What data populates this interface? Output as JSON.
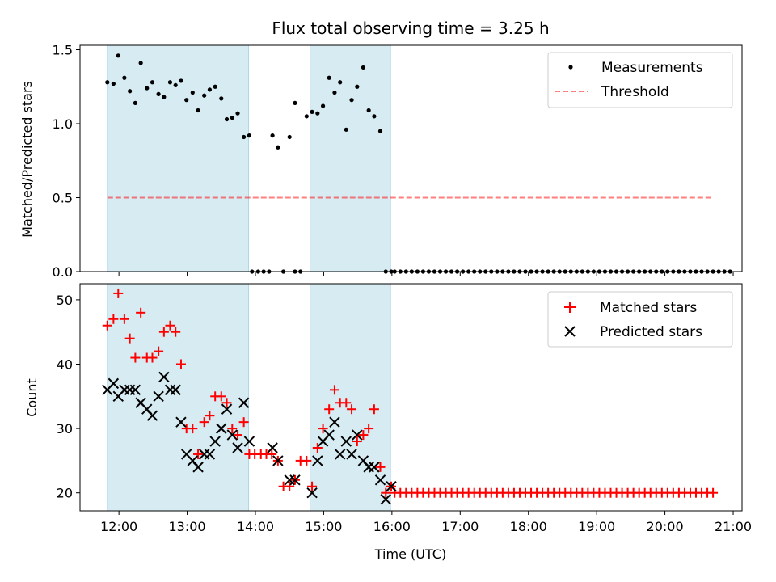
{
  "chart_data": [
    {
      "type": "scatter",
      "title": "Flux total observing time = 3.25 h",
      "xlabel": "",
      "ylabel": "Matched/Predicted stars",
      "xlim": [
        11.43,
        21.13
      ],
      "ylim": [
        0.0,
        1.53
      ],
      "yticks": [
        0.0,
        0.5,
        1.0,
        1.5
      ],
      "ytick_labels": [
        "0.0",
        "0.5",
        "1.0",
        "1.5"
      ],
      "xticks": [
        12,
        13,
        14,
        15,
        16,
        17,
        18,
        19,
        20,
        21
      ],
      "shaded_spans": [
        [
          11.83,
          13.9
        ],
        [
          14.8,
          15.98
        ]
      ],
      "series": [
        {
          "name": "Measurements",
          "x": [
            11.83,
            11.92,
            11.99,
            12.08,
            12.16,
            12.24,
            12.32,
            12.41,
            12.49,
            12.58,
            12.66,
            12.75,
            12.83,
            12.91,
            12.99,
            13.08,
            13.16,
            13.25,
            13.33,
            13.41,
            13.5,
            13.58,
            13.66,
            13.74,
            13.83,
            13.91,
            14.25,
            14.33,
            14.41,
            14.5,
            14.58,
            14.66,
            14.75,
            14.83,
            14.91,
            14.99,
            15.08,
            15.16,
            15.24,
            15.33,
            15.41,
            15.49,
            15.58,
            15.66,
            15.74,
            15.83,
            15.91,
            15.99
          ],
          "values": [
            1.28,
            1.27,
            1.46,
            1.31,
            1.22,
            1.14,
            1.41,
            1.24,
            1.28,
            1.2,
            1.18,
            1.28,
            1.26,
            1.29,
            1.16,
            1.21,
            1.09,
            1.19,
            1.23,
            1.25,
            1.17,
            1.03,
            1.04,
            1.07,
            0.91,
            0.92,
            0.92,
            0.84,
            0.0,
            0.91,
            1.14,
            0.0,
            1.05,
            1.08,
            1.07,
            1.12,
            1.31,
            1.21,
            1.28,
            0.96,
            1.16,
            1.25,
            1.38,
            1.09,
            1.05,
            0.95,
            0.0,
            0.0
          ],
          "zeros_x": [
            13.95,
            14.04,
            14.12,
            14.2,
            14.58,
            16.04,
            21.0
          ]
        },
        {
          "name": "Threshold",
          "x": [
            11.83,
            20.7
          ],
          "values": [
            0.5,
            0.5
          ]
        }
      ]
    },
    {
      "type": "scatter",
      "title": "",
      "xlabel": "Time (UTC)",
      "ylabel": "Count",
      "xlim": [
        11.43,
        21.13
      ],
      "ylim": [
        17.2,
        52.5
      ],
      "yticks": [
        20,
        30,
        40,
        50
      ],
      "ytick_labels": [
        "20",
        "30",
        "40",
        "50"
      ],
      "xticks": [
        12,
        13,
        14,
        15,
        16,
        17,
        18,
        19,
        20,
        21
      ],
      "xtick_labels": [
        "12:00",
        "13:00",
        "14:00",
        "15:00",
        "16:00",
        "17:00",
        "18:00",
        "19:00",
        "20:00",
        "21:00"
      ],
      "shaded_spans": [
        [
          11.83,
          13.9
        ],
        [
          14.8,
          15.98
        ]
      ],
      "series": [
        {
          "name": "Matched stars",
          "x": [
            11.83,
            11.92,
            11.99,
            12.08,
            12.16,
            12.24,
            12.32,
            12.41,
            12.49,
            12.58,
            12.66,
            12.75,
            12.83,
            12.91,
            12.99,
            13.08,
            13.16,
            13.25,
            13.33,
            13.41,
            13.5,
            13.58,
            13.66,
            13.74,
            13.83,
            13.91,
            13.99,
            14.08,
            14.16,
            14.24,
            14.33,
            14.41,
            14.5,
            14.58,
            14.66,
            14.75,
            14.83,
            14.91,
            14.99,
            15.08,
            15.16,
            15.24,
            15.33,
            15.41,
            15.49,
            15.58,
            15.66,
            15.74,
            15.83,
            15.91,
            15.99
          ],
          "values": [
            46,
            47,
            51,
            47,
            44,
            41,
            48,
            41,
            41,
            42,
            45,
            46,
            45,
            40,
            30,
            30,
            26,
            31,
            32,
            35,
            35,
            34,
            30,
            29,
            31,
            26,
            26,
            26,
            26,
            26,
            25,
            21,
            21,
            22,
            25,
            25,
            21,
            27,
            30,
            33,
            36,
            34,
            34,
            33,
            28,
            29,
            30,
            33,
            24,
            20,
            21
          ],
          "flat_tail_value": 20,
          "flat_tail_range": [
            16.04,
            20.75
          ]
        },
        {
          "name": "Predicted stars",
          "x": [
            11.83,
            11.92,
            11.99,
            12.08,
            12.16,
            12.24,
            12.32,
            12.41,
            12.49,
            12.58,
            12.66,
            12.75,
            12.83,
            12.91,
            12.99,
            13.08,
            13.16,
            13.25,
            13.33,
            13.41,
            13.5,
            13.58,
            13.66,
            13.74,
            13.83,
            13.91,
            14.25,
            14.33,
            14.5,
            14.58,
            14.83,
            14.91,
            14.99,
            15.08,
            15.16,
            15.24,
            15.33,
            15.41,
            15.49,
            15.58,
            15.66,
            15.74,
            15.83,
            15.91,
            15.99
          ],
          "values": [
            36,
            37,
            35,
            36,
            36,
            36,
            34,
            33,
            32,
            35,
            38,
            36,
            36,
            31,
            26,
            25,
            24,
            26,
            26,
            28,
            30,
            33,
            29,
            27,
            34,
            28,
            27,
            25,
            22,
            22,
            20,
            25,
            28,
            29,
            31,
            26,
            28,
            26,
            29,
            25,
            24,
            24,
            22,
            19,
            21
          ]
        }
      ]
    }
  ],
  "legend": {
    "top": [
      "Measurements",
      "Threshold"
    ],
    "bottom": [
      "Matched stars",
      "Predicted stars"
    ]
  },
  "colors": {
    "shade": "#add8e6",
    "measurement": "#000000",
    "threshold": "#ff0000",
    "matched": "#ff0000",
    "predicted": "#000000"
  }
}
